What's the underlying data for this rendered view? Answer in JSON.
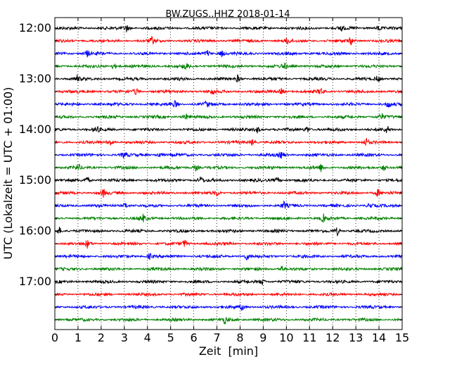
{
  "chart_data": {
    "type": "line",
    "subtype": "helicorder",
    "title": "BW.ZUGS..HHZ 2018-01-14",
    "xlabel": "Zeit  [min]",
    "ylabel": "UTC (Lokalzeit = UTC + 01:00)",
    "xlim": [
      0,
      15
    ],
    "xticks": [
      "0",
      "1",
      "2",
      "3",
      "4",
      "5",
      "6",
      "7",
      "8",
      "9",
      "10",
      "11",
      "12",
      "13",
      "14",
      "15"
    ],
    "y_tick_labels": [
      "12:00",
      "13:00",
      "14:00",
      "15:00",
      "16:00",
      "17:00"
    ],
    "grid": "vertical dotted lines at each minute",
    "trace_colors": [
      "#000000",
      "#ff0000",
      "#0000ff",
      "#008000"
    ],
    "traces": [
      {
        "start": "12:00",
        "color": "#000000",
        "events_min": [
          3.1,
          12.35,
          14.0
        ]
      },
      {
        "start": "12:15",
        "color": "#ff0000",
        "events_min": [
          4.2,
          10.05,
          12.8
        ]
      },
      {
        "start": "12:30",
        "color": "#0000ff",
        "events_min": [
          1.4,
          6.6,
          7.2
        ]
      },
      {
        "start": "12:45",
        "color": "#008000",
        "events_min": [
          2.55,
          5.65,
          9.9
        ]
      },
      {
        "start": "13:00",
        "color": "#000000",
        "events_min": [
          0.95,
          7.9,
          13.95
        ]
      },
      {
        "start": "13:15",
        "color": "#ff0000",
        "events_min": [
          3.5,
          6.8,
          9.8,
          11.5
        ]
      },
      {
        "start": "13:30",
        "color": "#0000ff",
        "events_min": [
          5.2,
          6.55,
          14.4
        ]
      },
      {
        "start": "13:45",
        "color": "#008000",
        "events_min": [
          5.65,
          14.1
        ]
      },
      {
        "start": "14:00",
        "color": "#000000",
        "events_min": [
          1.8,
          8.75,
          10.9,
          14.35
        ]
      },
      {
        "start": "14:15",
        "color": "#ff0000",
        "events_min": [
          2.4,
          8.55,
          13.45
        ]
      },
      {
        "start": "14:30",
        "color": "#0000ff",
        "events_min": [
          3.0,
          4.5,
          9.8
        ]
      },
      {
        "start": "14:45",
        "color": "#008000",
        "events_min": [
          1.0,
          6.1,
          11.5,
          14.2
        ]
      },
      {
        "start": "15:00",
        "color": "#000000",
        "events_min": [
          1.4,
          6.3,
          9.6
        ]
      },
      {
        "start": "15:15",
        "color": "#ff0000",
        "events_min": [
          2.1,
          7.0,
          13.95
        ]
      },
      {
        "start": "15:30",
        "color": "#0000ff",
        "events_min": [
          3.05,
          9.9,
          13.6
        ]
      },
      {
        "start": "15:45",
        "color": "#008000",
        "events_min": [
          3.8,
          11.6
        ]
      },
      {
        "start": "16:00",
        "color": "#000000",
        "events_min": [
          0.2,
          12.2
        ]
      },
      {
        "start": "16:15",
        "color": "#ff0000",
        "events_min": [
          1.4,
          5.6
        ]
      },
      {
        "start": "16:30",
        "color": "#0000ff",
        "events_min": [
          4.1,
          8.3
        ]
      },
      {
        "start": "16:45",
        "color": "#008000",
        "events_min": [
          9.8
        ]
      },
      {
        "start": "17:00",
        "color": "#000000",
        "events_min": [
          8.95
        ]
      },
      {
        "start": "17:15",
        "color": "#ff0000",
        "events_min": []
      },
      {
        "start": "17:30",
        "color": "#0000ff",
        "events_min": [
          8.1
        ]
      },
      {
        "start": "17:45",
        "color": "#008000",
        "events_min": [
          7.35
        ]
      }
    ]
  }
}
